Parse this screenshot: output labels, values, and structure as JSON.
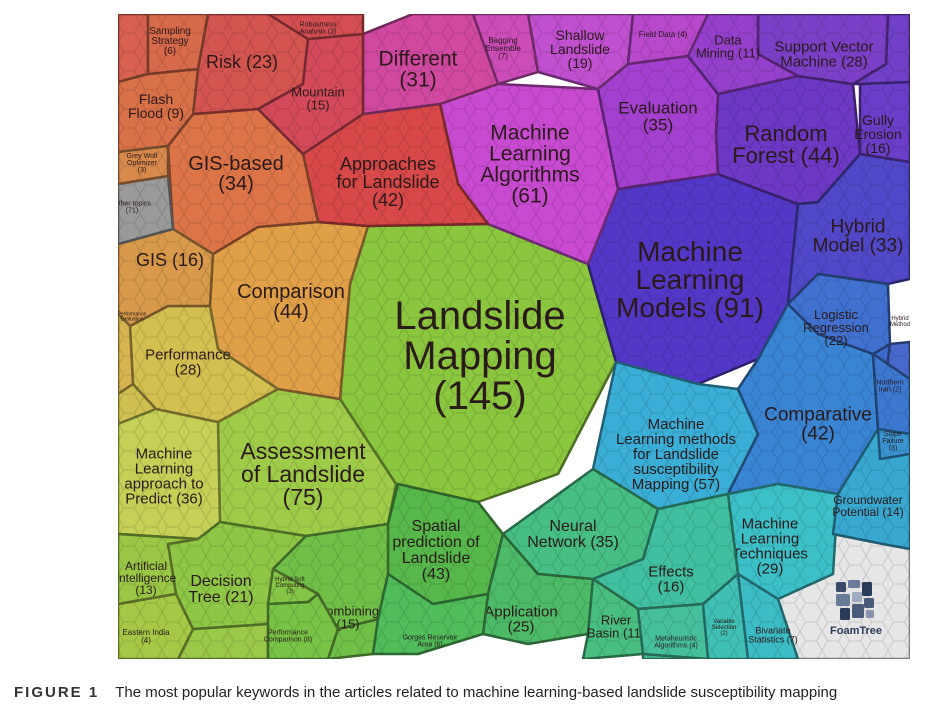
{
  "caption": {
    "label": "FIGURE 1",
    "text": "The most popular keywords in the articles related to machine learning-based landslide susceptibility mapping"
  },
  "logo": {
    "text": "FoamTree",
    "icon": "foamtree-logo-icon"
  },
  "cells": [
    {
      "id": "landslide-mapping",
      "lines": [
        "Landslide",
        "Mapping",
        "(145)"
      ],
      "color": "#8ac63e",
      "value": 145
    },
    {
      "id": "machine-learning-models",
      "lines": [
        "Machine",
        "Learning",
        "Models (91)"
      ],
      "color": "#5338c8",
      "value": 91
    },
    {
      "id": "assessment-of-landslide",
      "lines": [
        "Assessment",
        "of Landslide",
        "(75)"
      ],
      "color": "#9fcc48",
      "value": 75
    },
    {
      "id": "machine-learning-algorithms",
      "lines": [
        "Machine",
        "Learning",
        "Algorithms",
        "(61)"
      ],
      "color": "#c84ad0",
      "value": 61
    },
    {
      "id": "ml-methods-lsm",
      "lines": [
        "Machine",
        "Learning methods",
        "for Landslide",
        "susceptibility",
        "Mapping (57)"
      ],
      "color": "#3aaed6",
      "value": 57
    },
    {
      "id": "comparison",
      "lines": [
        "Comparison",
        "(44)"
      ],
      "color": "#e0a048",
      "value": 44
    },
    {
      "id": "random-forest",
      "lines": [
        "Random",
        "Forest (44)"
      ],
      "color": "#6c38c4",
      "value": 44
    },
    {
      "id": "spatial-prediction",
      "lines": [
        "Spatial",
        "prediction of",
        "Landslide",
        "(43)"
      ],
      "color": "#56b84a",
      "value": 43
    },
    {
      "id": "approaches-for-landslide",
      "lines": [
        "Approaches",
        "for Landslide",
        "(42)"
      ],
      "color": "#d84848",
      "value": 42
    },
    {
      "id": "comparative",
      "lines": [
        "Comparative",
        "(42)"
      ],
      "color": "#3a84d4",
      "value": 42
    },
    {
      "id": "ml-approach-predict",
      "lines": [
        "Machine",
        "Learning",
        "approach to",
        "Predict (36)"
      ],
      "color": "#c4d056",
      "value": 36
    },
    {
      "id": "evaluation",
      "lines": [
        "Evaluation",
        "(35)"
      ],
      "color": "#a440d0",
      "value": 35
    },
    {
      "id": "neural-network",
      "lines": [
        "Neural",
        "Network (35)"
      ],
      "color": "#46be84",
      "value": 35
    },
    {
      "id": "gis-based",
      "lines": [
        "GIS-based",
        "(34)"
      ],
      "color": "#dc7448",
      "value": 34
    },
    {
      "id": "hybrid-model",
      "lines": [
        "Hybrid",
        "Model (33)"
      ],
      "color": "#5048c8",
      "value": 33
    },
    {
      "id": "different",
      "lines": [
        "Different",
        "(31)"
      ],
      "color": "#d048a0",
      "value": 31
    },
    {
      "id": "ml-techniques",
      "lines": [
        "Machine",
        "Learning",
        "Techniques",
        "(29)"
      ],
      "color": "#3cc0c8",
      "value": 29
    },
    {
      "id": "support-vector-machine",
      "lines": [
        "Support Vector",
        "Machine (28)"
      ],
      "color": "#7c40c8",
      "value": 28
    },
    {
      "id": "performance",
      "lines": [
        "Performance",
        "(28)"
      ],
      "color": "#d4c050",
      "value": 28
    },
    {
      "id": "application",
      "lines": [
        "Application",
        "(25)"
      ],
      "color": "#4cba66",
      "value": 25
    },
    {
      "id": "risk",
      "lines": [
        "Risk (23)"
      ],
      "color": "#d45450",
      "value": 23
    },
    {
      "id": "logistic-regression",
      "lines": [
        "Logistic",
        "Regression",
        "(22)"
      ],
      "color": "#4070d0",
      "value": 22
    },
    {
      "id": "decision-tree",
      "lines": [
        "Decision",
        "Tree (21)"
      ],
      "color": "#8ec646",
      "value": 21
    },
    {
      "id": "shallow-landslide",
      "lines": [
        "Shallow",
        "Landslide",
        "(19)"
      ],
      "color": "#c050d0",
      "value": 19
    },
    {
      "id": "gully-erosion",
      "lines": [
        "Gully",
        "Erosion",
        "(16)"
      ],
      "color": "#6a3ec8",
      "value": 16
    },
    {
      "id": "gis",
      "lines": [
        "GIS (16)"
      ],
      "color": "#d89a4a",
      "value": 16
    },
    {
      "id": "effects",
      "lines": [
        "Effects",
        "(16)"
      ],
      "color": "#40c0a0",
      "value": 16
    },
    {
      "id": "mountain",
      "lines": [
        "Mountain",
        "(15)"
      ],
      "color": "#d44a5a",
      "value": 15
    },
    {
      "id": "combining",
      "lines": [
        "Combining",
        "(15)"
      ],
      "color": "#70c048",
      "value": 15
    },
    {
      "id": "groundwater-potential",
      "lines": [
        "Groundwater",
        "Potential (14)"
      ],
      "color": "#38a8d0",
      "value": 14
    },
    {
      "id": "artificial-intelligence",
      "lines": [
        "Artificial",
        "Intelligence",
        "(13)"
      ],
      "color": "#9ac846",
      "value": 13
    },
    {
      "id": "data-mining",
      "lines": [
        "Data",
        "Mining (11)"
      ],
      "color": "#9440cc",
      "value": 11
    },
    {
      "id": "river-basin",
      "lines": [
        "River",
        "Basin (11)"
      ],
      "color": "#48be80",
      "value": 11
    },
    {
      "id": "flash-flood",
      "lines": [
        "Flash",
        "Flood (9)"
      ],
      "color": "#d87048",
      "value": 9
    },
    {
      "id": "other-topics",
      "lines": [
        "Other topics",
        "(71)"
      ],
      "color": "#9a9a9a",
      "value": 71
    },
    {
      "id": "grey-wolf-optimizer",
      "lines": [
        "Grey Wolf",
        "Optimizer",
        "(3)"
      ],
      "color": "#d88a4c",
      "value": 3
    },
    {
      "id": "sampling-strategy",
      "lines": [
        "Sampling",
        "Strategy",
        "(6)"
      ],
      "color": "#d86a4c",
      "value": 6
    },
    {
      "id": "robustness-analysis",
      "lines": [
        "Robustness",
        "Analysis (3)"
      ],
      "color": "#d44e52",
      "value": 3
    },
    {
      "id": "bagging-ensemble",
      "lines": [
        "Bagging",
        "Ensemble",
        "(7)"
      ],
      "color": "#cc4cb8",
      "value": 7
    },
    {
      "id": "field-data",
      "lines": [
        "Field Data (4)"
      ],
      "color": "#b848cc",
      "value": 4
    },
    {
      "id": "gorges-reservoir-area",
      "lines": [
        "Gorges Reservoir",
        "Area (6)"
      ],
      "color": "#50bc5a",
      "value": 6
    },
    {
      "id": "metaheuristic-algorithms",
      "lines": [
        "Metaheuristic",
        "Algorithms (4)"
      ],
      "color": "#46c09c",
      "value": 4
    },
    {
      "id": "variable-selection",
      "lines": [
        "Variable",
        "Selection",
        "(2)"
      ],
      "color": "#40c0b4",
      "value": 2
    },
    {
      "id": "bivariate-statistics",
      "lines": [
        "Bivariate",
        "Statistics (7)"
      ],
      "color": "#3cbcc4",
      "value": 7
    },
    {
      "id": "hybrid-soft-computing",
      "lines": [
        "Hybrid Soft",
        "Computing",
        "(3)"
      ],
      "color": "#84c446",
      "value": 3
    },
    {
      "id": "performance-comparison",
      "lines": [
        "Performance",
        "Comparison (8)"
      ],
      "color": "#78c246",
      "value": 8
    },
    {
      "id": "eastern-india",
      "lines": [
        "Eastern India",
        "(4)"
      ],
      "color": "#a6c846",
      "value": 4
    },
    {
      "id": "hybrid-method",
      "lines": [
        "Hybrid",
        "Method"
      ],
      "color": "#4868cc",
      "value": null
    },
    {
      "id": "northern-iran",
      "lines": [
        "Northern",
        "Iran (2)"
      ],
      "color": "#3c78d0",
      "value": 2
    },
    {
      "id": "slope-failure",
      "lines": [
        "Slope",
        "Failure",
        "(3)"
      ],
      "color": "#3a94d2",
      "value": 3
    },
    {
      "id": "performance-evaluation",
      "lines": [
        "Performance",
        "Evaluation"
      ],
      "color": "#d8b450",
      "value": null
    }
  ]
}
